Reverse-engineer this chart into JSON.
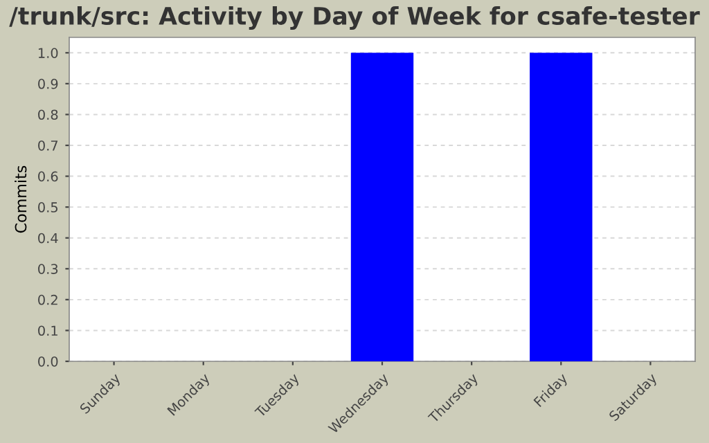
{
  "chart_data": {
    "type": "bar",
    "title": "/trunk/src: Activity by Day of Week for csafe-tester",
    "ylabel": "Commits",
    "categories": [
      "Sunday",
      "Monday",
      "Tuesday",
      "Wednesday",
      "Thursday",
      "Friday",
      "Saturday"
    ],
    "values": [
      0,
      0,
      0,
      1,
      0,
      1,
      0
    ],
    "color": "#0000ff",
    "ylim": [
      0,
      1.05
    ],
    "yticks": [
      {
        "value": 0,
        "label": "0.0"
      },
      {
        "value": 0.1,
        "label": "0.1"
      },
      {
        "value": 0.2,
        "label": "0.2"
      },
      {
        "value": 0.3,
        "label": "0.3"
      },
      {
        "value": 0.4,
        "label": "0.4"
      },
      {
        "value": 0.5,
        "label": "0.5"
      },
      {
        "value": 0.6,
        "label": "0.6"
      },
      {
        "value": 0.7,
        "label": "0.7"
      },
      {
        "value": 0.8,
        "label": "0.8"
      },
      {
        "value": 0.9,
        "label": "0.9"
      },
      {
        "value": 1.0,
        "label": "1.0"
      }
    ],
    "grid": "y"
  }
}
